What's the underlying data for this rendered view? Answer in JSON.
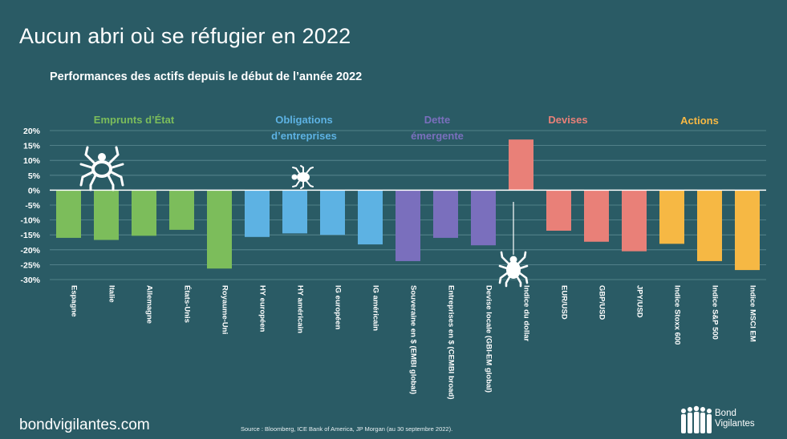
{
  "title": "Aucun abri où se réfugier en 2022",
  "subtitle": "Performances des actifs depuis le début de l’année 2022",
  "footer": {
    "site": "bondvigilantes.com",
    "source": "Source : Bloomberg, ICE Bank of America, JP Morgan (au 30 septembre 2022).",
    "brand_line1": "Bond",
    "brand_line2": "Vigilantes"
  },
  "icons": [
    "spider-icon",
    "small-spider-icon",
    "dangling-spider-icon",
    "bond-vigilantes-logo-icon"
  ],
  "colors": {
    "background": "#2a5b65",
    "emprunts": "#7cbd5b",
    "obligations": "#5db2e3",
    "dette": "#7a6fbd",
    "devises": "#e98078",
    "actions": "#f6b844"
  },
  "chart_data": {
    "type": "bar",
    "title": "Performances des actifs depuis le début de l’année 2022",
    "ylim": [
      -30,
      20
    ],
    "yticks": [
      "20%",
      "15%",
      "10%",
      "5%",
      "0%",
      "-5%",
      "-10%",
      "-15%",
      "-20%",
      "-25%",
      "-30%"
    ],
    "ytick_values": [
      20,
      15,
      10,
      5,
      0,
      -5,
      -10,
      -15,
      -20,
      -25,
      -30
    ],
    "grid": true,
    "groups": [
      {
        "name": "Emprunts d’État",
        "color": "#7cbd5b"
      },
      {
        "name": "Obligations d’entreprises",
        "color": "#5db2e3"
      },
      {
        "name": "Dette émergente",
        "color": "#7a6fbd"
      },
      {
        "name": "Devises",
        "color": "#e98078"
      },
      {
        "name": "Actions",
        "color": "#f6b844"
      }
    ],
    "categories": [
      "Espagne",
      "Italie",
      "Allemagne",
      "États-Unis",
      "Royaume-Uni",
      "HY européen",
      "HY américain",
      "IG européen",
      "IG américain",
      "Souveraine en $ (EMBI global)",
      "Entreprises en $ (CEMBI broad)",
      "Devise locale (GBI-EM global)",
      "Indice du dollar",
      "EUR/USD",
      "GBP/USD",
      "JPY/USD",
      "Indice Stoxx 600",
      "Indice S&P 500",
      "Indice MSCI EM"
    ],
    "values": [
      -16,
      -16.7,
      -15.3,
      -13.3,
      -26.3,
      -15.7,
      -14.5,
      -15,
      -18.2,
      -23.8,
      -16,
      -18.5,
      17,
      -13.6,
      -17.3,
      -20.5,
      -18,
      -23.8,
      -26.8
    ],
    "group_index": [
      0,
      0,
      0,
      0,
      0,
      1,
      1,
      1,
      1,
      2,
      2,
      2,
      3,
      3,
      3,
      3,
      4,
      4,
      4
    ]
  }
}
